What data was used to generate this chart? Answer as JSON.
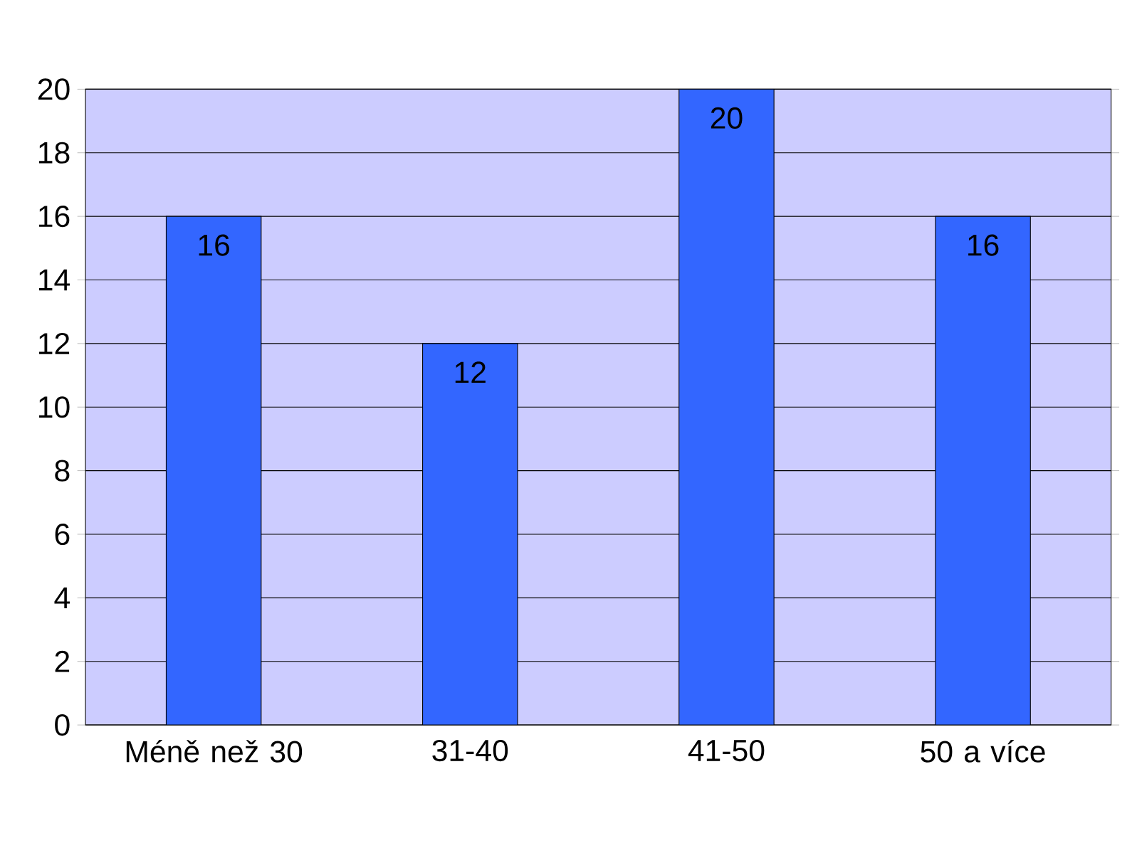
{
  "chart_data": {
    "type": "bar",
    "categories": [
      "Méně než 30",
      "31-40",
      "41-50",
      "50 a více"
    ],
    "values": [
      16,
      12,
      20,
      16
    ],
    "color": "#3366ff",
    "ylim": [
      0,
      20
    ],
    "yticks": [
      0,
      2,
      4,
      6,
      8,
      10,
      12,
      14,
      16,
      18,
      20
    ],
    "grid": "y",
    "data_labels": true
  }
}
